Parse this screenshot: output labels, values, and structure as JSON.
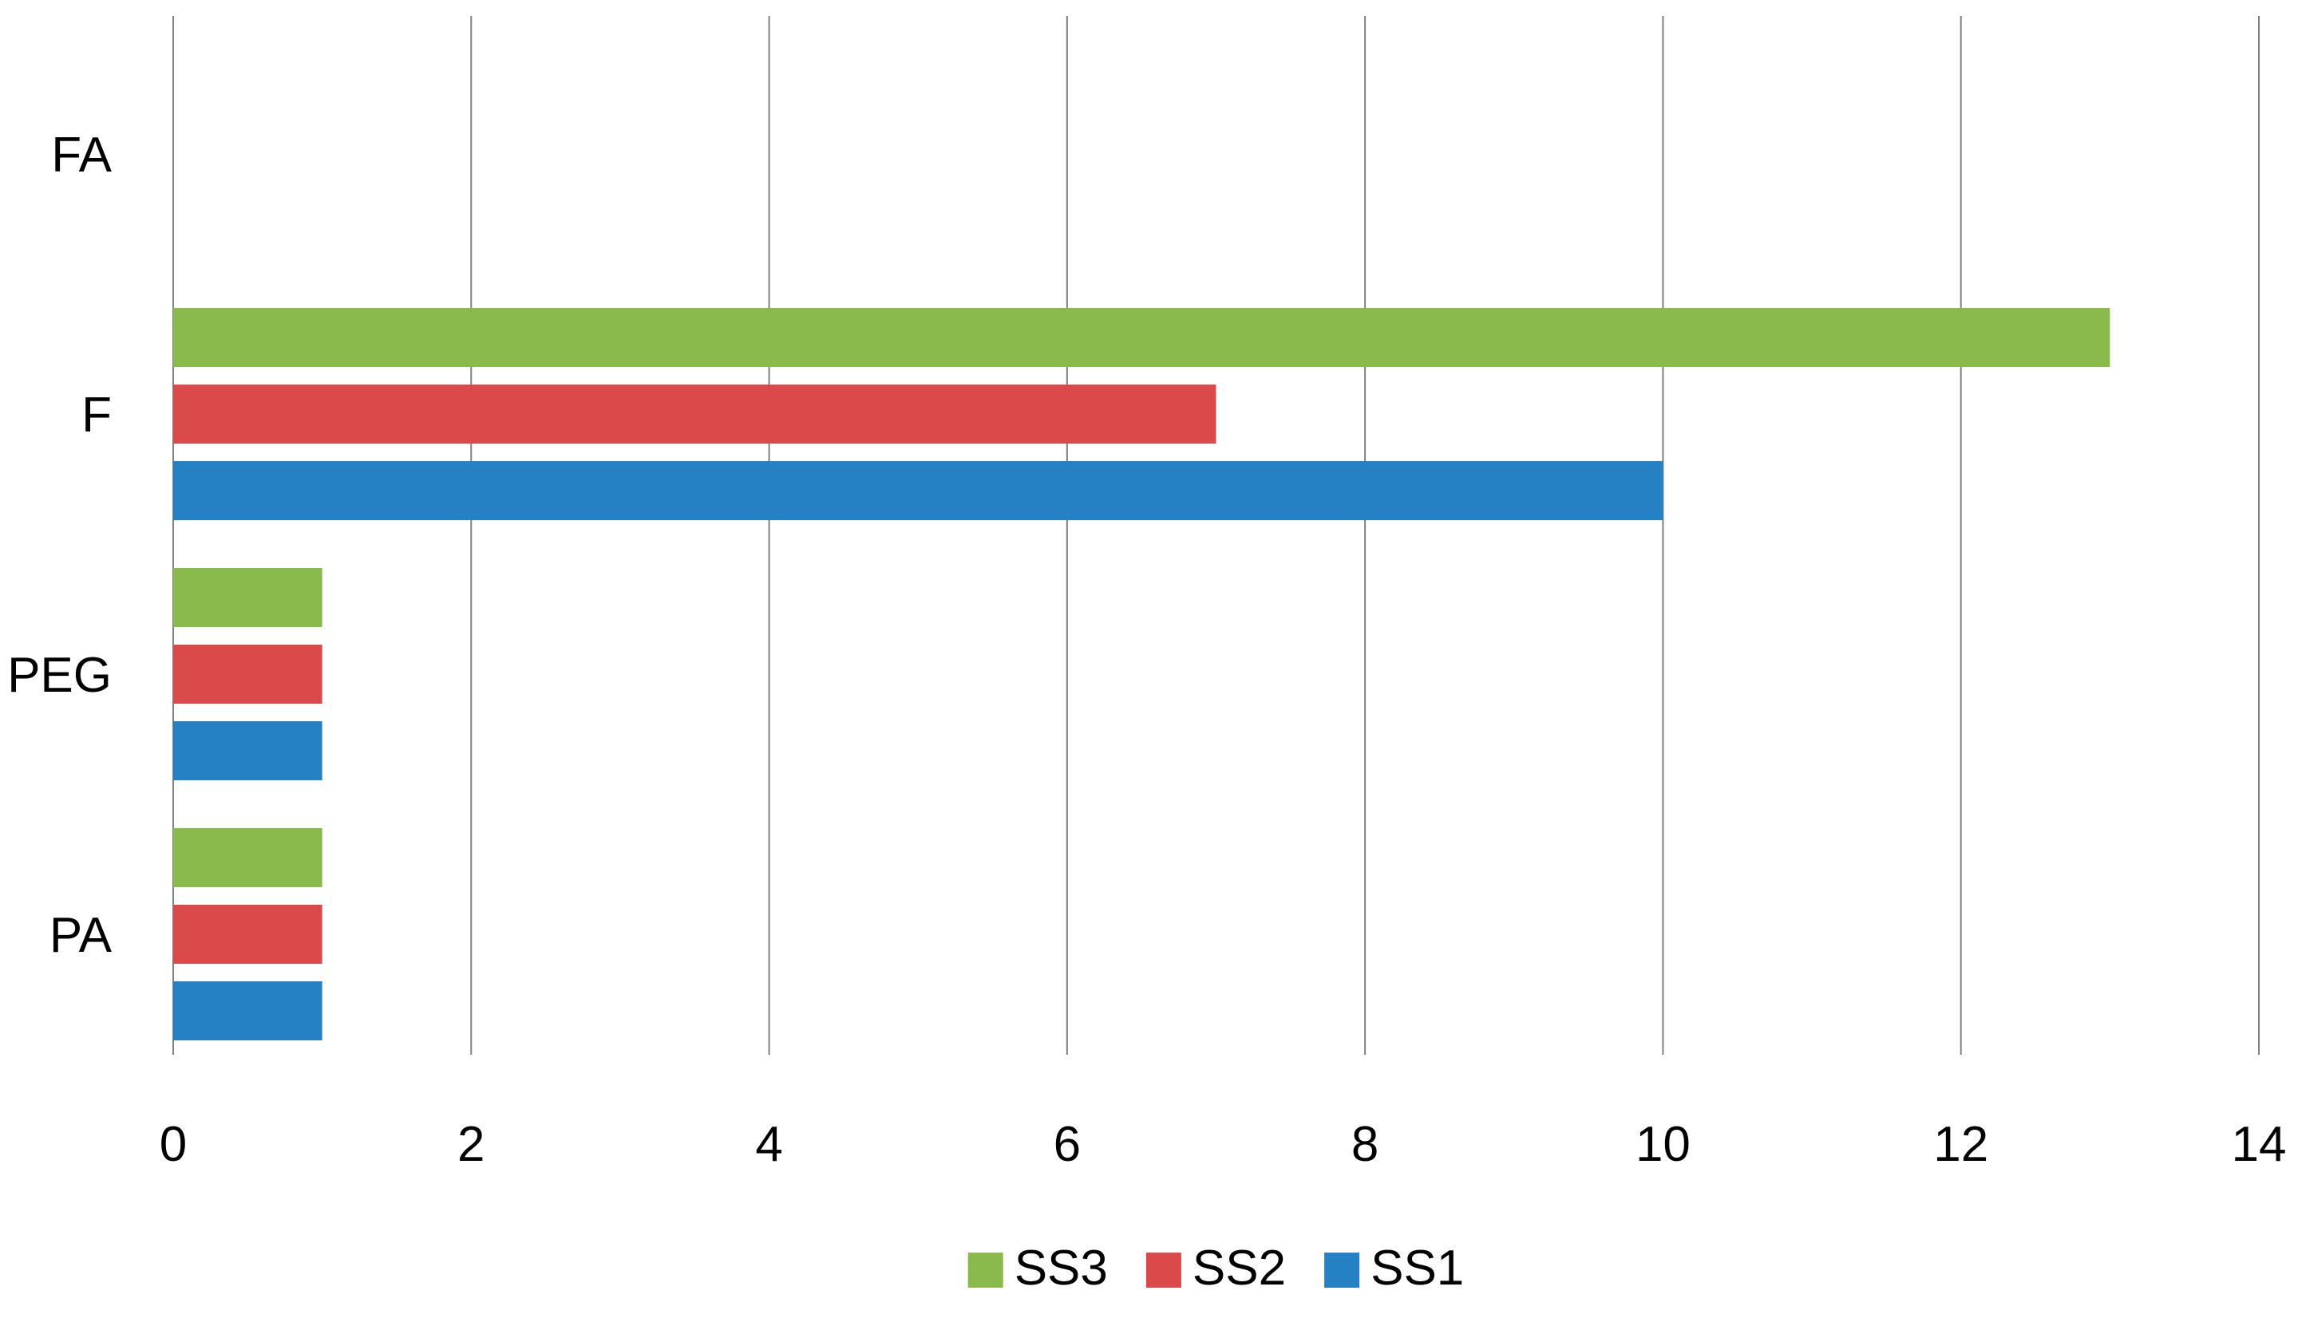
{
  "chart_data": {
    "type": "bar",
    "orientation": "horizontal",
    "categories": [
      "FA",
      "F",
      "PEG",
      "PA"
    ],
    "series": [
      {
        "name": "SS3",
        "color": "#8BBA4C",
        "values": [
          0,
          13,
          1,
          1
        ]
      },
      {
        "name": "SS2",
        "color": "#DB4A4A",
        "values": [
          0,
          7,
          1,
          1
        ]
      },
      {
        "name": "SS1",
        "color": "#2681C4",
        "values": [
          0,
          10,
          1,
          1
        ]
      }
    ],
    "xlim": [
      0,
      14
    ],
    "x_ticks": [
      "0",
      "2",
      "4",
      "6",
      "8",
      "10",
      "12",
      "14"
    ],
    "grid": "vertical",
    "grid_color": "#808080",
    "legend": {
      "position": "bottom",
      "entries": [
        "SS3",
        "SS2",
        "SS1"
      ]
    }
  }
}
